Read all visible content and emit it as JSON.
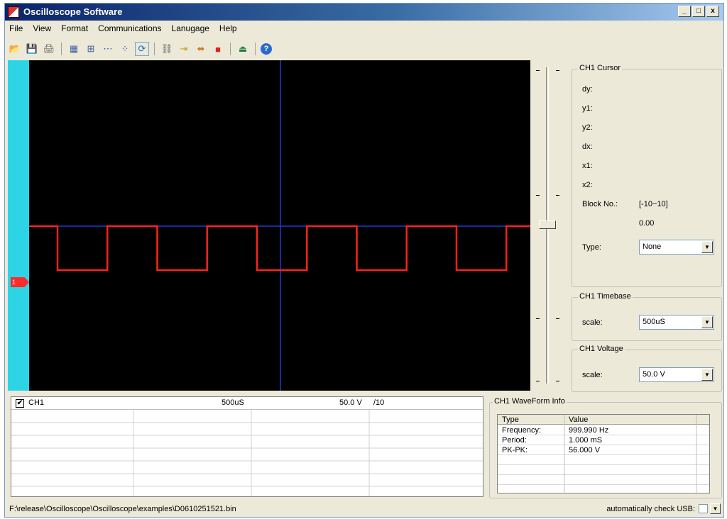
{
  "window": {
    "title": "Oscilloscope Software",
    "controls": [
      "_",
      "□",
      "x"
    ]
  },
  "menu": [
    "File",
    "View",
    "Format",
    "Communications",
    "Lanugage",
    "Help"
  ],
  "toolbar": {
    "icons": [
      "open-folder-icon",
      "save-icon",
      "print-icon",
      "grid-icon",
      "crosshair-grid-icon",
      "dots-icon",
      "scatter-icon",
      "refresh-icon",
      "link-icon",
      "export-icon",
      "capture-icon",
      "stop-icon",
      "exit-icon",
      "help-icon"
    ],
    "glyphs": [
      "📂",
      "💾",
      "🖨",
      "▦",
      "⊞",
      "⋯",
      "⁘",
      "⟳",
      "⛓",
      "⇥",
      "⬌",
      "■",
      "⏏",
      "?"
    ]
  },
  "scope": {
    "marker_label": "1",
    "colors": {
      "background": "#000000",
      "trace": "#ff2020",
      "axis": "#1f3bd6",
      "side": "#2cd4e6"
    },
    "waveform": {
      "type": "square",
      "period_ms": 1.0,
      "pk_pk_v": 56.0
    }
  },
  "cursor": {
    "title": "CH1 Cursor",
    "fields": [
      "dy:",
      "y1:",
      "y2:",
      "dx:",
      "x1:",
      "x2:"
    ],
    "block_label": "Block No.:",
    "block_range": "[-10~10]",
    "block_value": "0.00",
    "type_label": "Type:",
    "type_value": "None"
  },
  "timebase": {
    "title": "CH1 Timebase",
    "label": "scale:",
    "value": "500uS"
  },
  "voltage": {
    "title": "CH1 Voltage",
    "label": "scale:",
    "value": "50.0 V"
  },
  "channel": {
    "check": "✔",
    "name": "CH1",
    "timebase": "500uS",
    "voltage": "50.0 V",
    "probe": "/10"
  },
  "waveform_info": {
    "title": "CH1 WaveForm Info",
    "headers": [
      "Type",
      "Value"
    ],
    "rows": [
      {
        "type": "Frequency:",
        "value": "999.990 Hz"
      },
      {
        "type": "Period:",
        "value": "1.000 mS"
      },
      {
        "type": "PK-PK:",
        "value": "56.000 V"
      }
    ]
  },
  "status": {
    "path": "F:\\release\\Oscilloscope\\Oscilloscope\\examples\\D0610251521.bin",
    "usb_label": "automatically check USB:"
  }
}
